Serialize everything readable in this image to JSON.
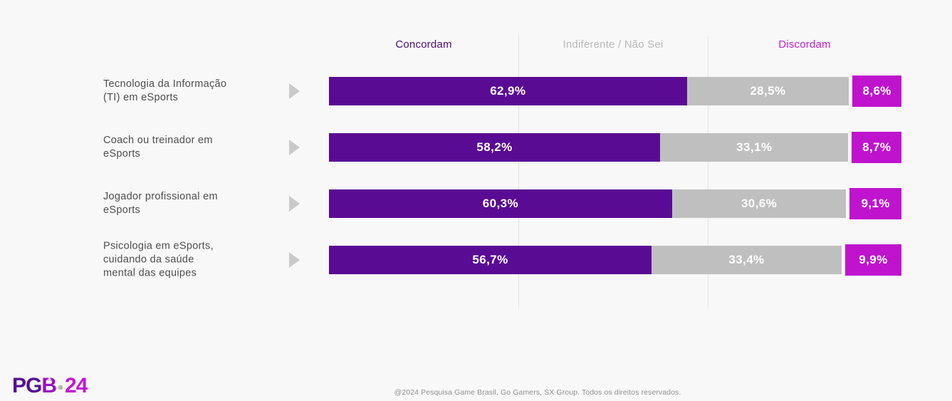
{
  "header": {
    "columns": [
      {
        "label": "Concordam",
        "color": "#4d0d82"
      },
      {
        "label": "Indiferente / Não Sei",
        "color": "#b9b9b9"
      },
      {
        "label": "Discordam",
        "color": "#c41fd3"
      }
    ]
  },
  "chart_data": {
    "type": "bar",
    "variant": "horizontal-stacked-100",
    "legend_position": "top",
    "grid": false,
    "xlim": [
      0,
      100
    ],
    "categories": [
      "Tecnologia da Informação (TI) em eSports",
      "Coach ou treinador em eSports",
      "Jogador profissional em eSports",
      "Psicologia em eSports, cuidando da saúde mental das equipes"
    ],
    "category_lines": [
      [
        "Tecnologia da Informação",
        "(TI) em eSports"
      ],
      [
        "Coach ou treinador em",
        "eSports"
      ],
      [
        "Jogador profissional em",
        "eSports"
      ],
      [
        "Psicologia em eSports,",
        "cuidando da saúde",
        "mental das equipes"
      ]
    ],
    "series": [
      {
        "name": "Concordam",
        "color": "#5a0b93",
        "values": [
          62.9,
          58.2,
          60.3,
          56.7
        ],
        "labels": [
          "62,9%",
          "58,2%",
          "60,3%",
          "56,7%"
        ]
      },
      {
        "name": "Indiferente / Não Sei",
        "color": "#bfbfbf",
        "values": [
          28.5,
          33.1,
          30.6,
          33.4
        ],
        "labels": [
          "28,5%",
          "33,1%",
          "30,6%",
          "33,4%"
        ]
      },
      {
        "name": "Discordam",
        "color": "#bf13cd",
        "values": [
          8.6,
          8.7,
          9.1,
          9.9
        ],
        "labels": [
          "8,6%",
          "8,7%",
          "9,1%",
          "9,9%"
        ]
      }
    ],
    "series_keys": [
      "concordam",
      "indiferente",
      "discordam"
    ]
  },
  "footer": {
    "copyright": "@2024 Pesquisa Game Brasil, Go Gamers, SX Group. Todos os direitos reservados."
  },
  "logo": {
    "part_pg": "PG",
    "part_b": "B",
    "part_plus": "+",
    "part_year": "24"
  }
}
